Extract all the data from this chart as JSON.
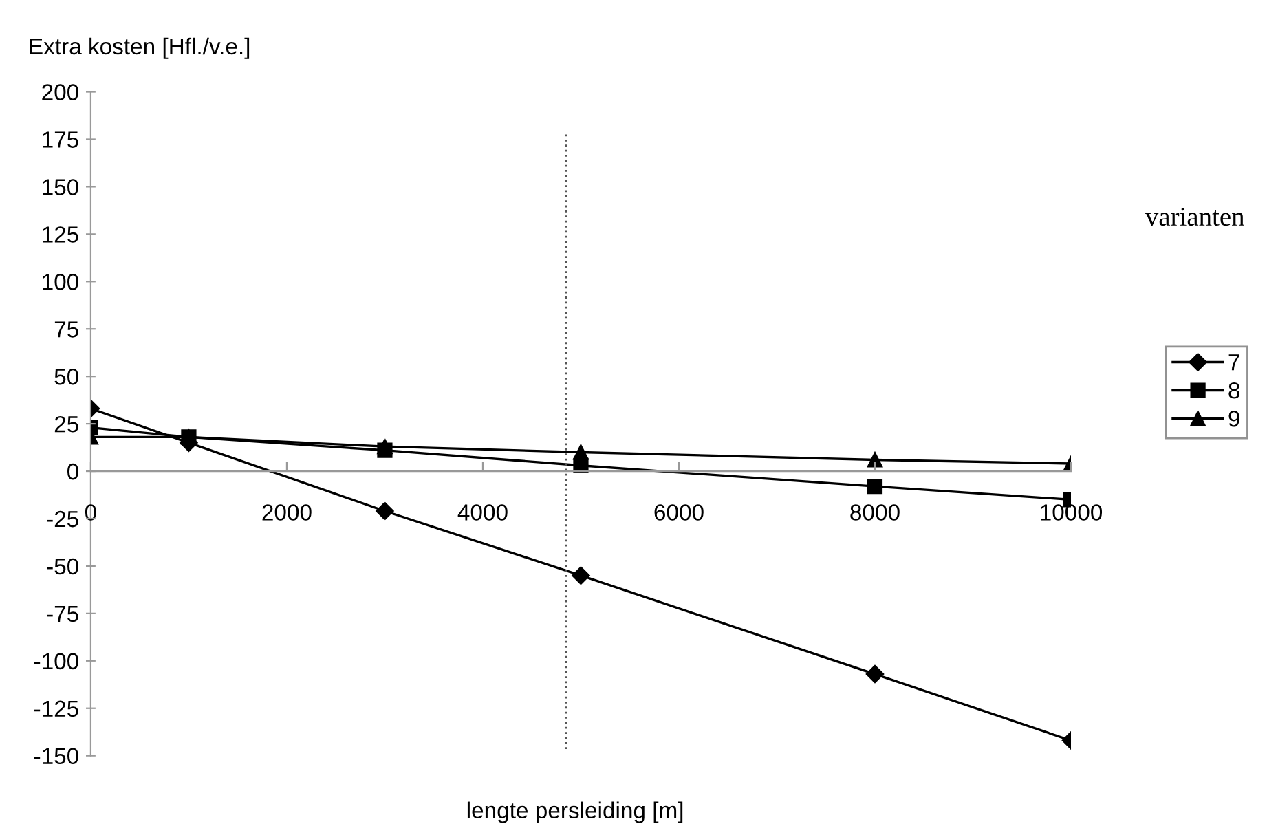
{
  "chart_data": {
    "type": "line",
    "ylabel": "Extra kosten [Hfl./v.e.]",
    "xlabel": "lengte persleiding [m]",
    "legend_title": "varianten",
    "x": [
      0,
      1000,
      3000,
      5000,
      8000,
      10000
    ],
    "series": [
      {
        "name": "7",
        "color": "#000000",
        "marker": "diamond",
        "values": [
          33,
          15,
          -21,
          -55,
          -107,
          -142
        ]
      },
      {
        "name": "8",
        "color": "#000000",
        "marker": "square",
        "values": [
          23,
          18,
          11,
          3,
          -8,
          -15
        ]
      },
      {
        "name": "9",
        "color": "#000000",
        "marker": "triangle",
        "values": [
          18,
          18,
          13,
          10,
          6,
          4
        ]
      }
    ],
    "xlim": [
      0,
      10000
    ],
    "xticks": [
      0,
      2000,
      4000,
      6000,
      8000,
      10000
    ],
    "ylim": [
      -150,
      200
    ],
    "yticks": [
      -150,
      -125,
      -100,
      -75,
      -50,
      -25,
      0,
      25,
      50,
      75,
      100,
      125,
      150,
      175,
      200
    ],
    "ref_lines": [
      {
        "axis": "x",
        "value": 4850,
        "line_style": "dotted",
        "color": "#555555"
      }
    ],
    "grid": false,
    "legend": "right",
    "line_style": "solid"
  }
}
